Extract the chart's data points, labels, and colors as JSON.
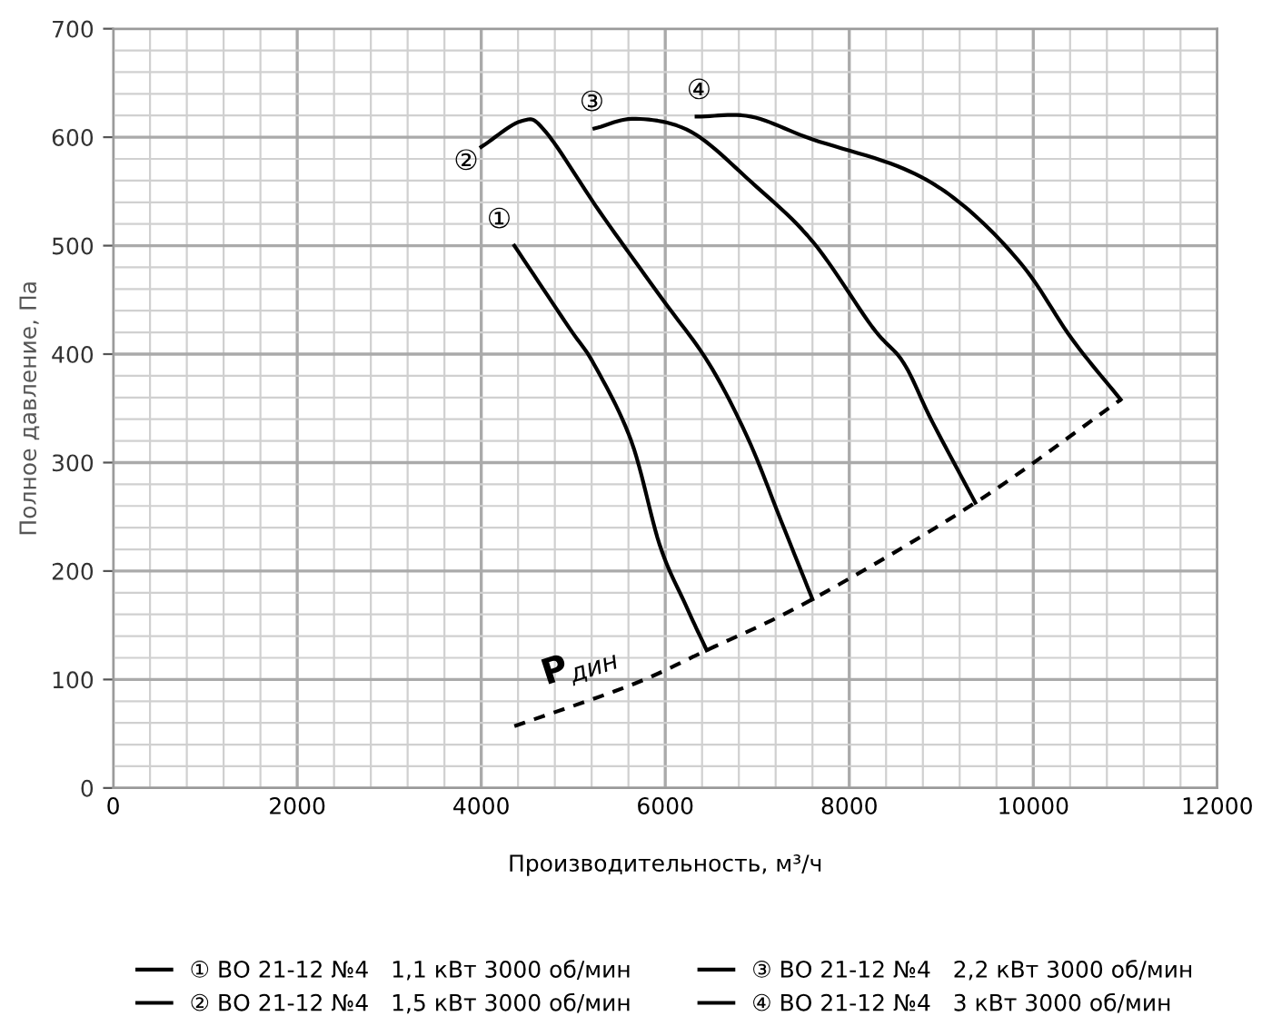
{
  "chart_data": {
    "type": "line",
    "xlabel": "Производительность, м³/ч",
    "ylabel": "Полное давление, Па",
    "xlim": [
      0,
      12000
    ],
    "xticks": [
      0,
      2000,
      4000,
      6000,
      8000,
      10000,
      12000
    ],
    "ylim": [
      0,
      700
    ],
    "yticks": [
      0,
      100,
      200,
      300,
      400,
      500,
      600,
      700
    ],
    "grid": true,
    "legend": "bottom",
    "marker": "none",
    "series": [
      {
        "name": "① ВО 21-12 №4   1,1 кВт 3000 об/мин",
        "color": "#000000",
        "line_style": "solid",
        "x": [
          4360,
          4950,
          5230,
          5630,
          5940,
          6220,
          6450
        ],
        "values": [
          500,
          425,
          390,
          320,
          224,
          169,
          127
        ]
      },
      {
        "name": "② ВО 21-12 №4   1,5 кВт 3000 об/мин",
        "color": "#000000",
        "line_style": "solid",
        "x": [
          4000,
          4440,
          4700,
          5290,
          5940,
          6470,
          6900,
          7260,
          7600
        ],
        "values": [
          591,
          615,
          605,
          531,
          454,
          392,
          322,
          246,
          174
        ]
      },
      {
        "name": "③ ВО 21-12 №4   2,2 кВт 3000 об/мин",
        "color": "#000000",
        "line_style": "solid",
        "x": [
          5230,
          5680,
          6280,
          6930,
          7600,
          8250,
          8590,
          8900,
          9370
        ],
        "values": [
          608,
          617,
          605,
          559,
          504,
          425,
          392,
          338,
          263
        ]
      },
      {
        "name": "④ ВО 21-12 №4   3 кВт 3000 об/мин",
        "color": "#000000",
        "line_style": "solid",
        "x": [
          6340,
          6930,
          7600,
          8590,
          9240,
          9890,
          10420,
          10950
        ],
        "values": [
          619,
          619,
          598,
          571,
          537,
          481,
          414,
          358
        ]
      },
      {
        "color": "#000000",
        "line_style": "dashed",
        "x": [
          4360,
          5630,
          6450,
          7600,
          9370,
          10950
        ],
        "values": [
          57,
          95,
          127,
          174,
          263,
          358
        ]
      }
    ],
    "annotations": [
      "①",
      "②",
      "③",
      "④",
      "P$_{дин}$"
    ]
  }
}
